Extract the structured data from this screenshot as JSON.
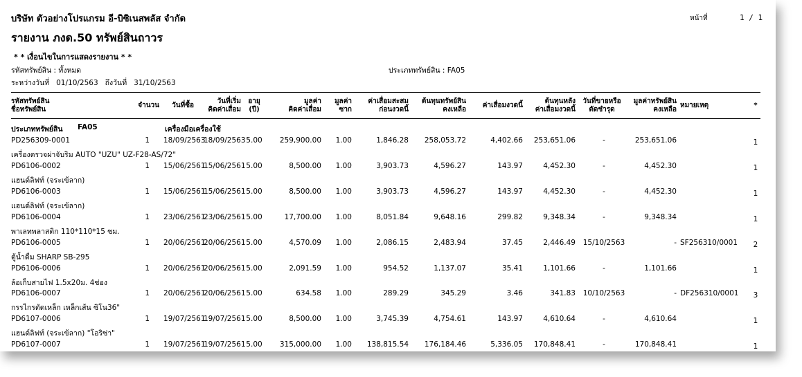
{
  "header": {
    "company": "บริษัท ตัวอย่างโปรแกรม อี-บิซิเนสพลัส จำกัด",
    "page_label": "หน้าที่",
    "page_number": "1 / 1",
    "report_title": "รายงาน ภงด.50  ทรัพย์สินถาวร"
  },
  "conditions": {
    "title": "* * เงื่อนไขในการแสดงรายงาน * *",
    "asset_code": "รหัสทรัพย์สิน : ทั้งหมด",
    "asset_type": "ประเภททรัพย์สิน : FA05",
    "between_label": "ระหว่างวันที่",
    "from_date": "01/10/2563",
    "to_label": "ถึงวันที่",
    "to_date": "31/10/2563"
  },
  "columns": {
    "code": [
      "รหัสทรัพย์สิน",
      "ชื่อทรัพย์สิน"
    ],
    "qty": "จำนวน",
    "buy_date": "วันที่ซื้อ",
    "start_date": [
      "วันที่เริ่ม",
      "คิดค่าเสื่อม"
    ],
    "life": [
      "อายุ",
      "(ปี)"
    ],
    "value": [
      "มูลค่า",
      "คิดค่าเสื่อม"
    ],
    "scrap": [
      "มูลค่า",
      "ซาก"
    ],
    "acc_dep": [
      "ค่าเสื่อมสะสม",
      "ก่อนงวดนี้"
    ],
    "remain_cost": [
      "ต้นทุนทรัพย์สิน",
      "คงเหลือ"
    ],
    "period_dep": "ค่าเสื่อมงวดนี้",
    "cost_after": [
      "ต้นทุนหลัง",
      "ค่าเสื่อมงวดนี้"
    ],
    "sell_date": [
      "วันที่ขายหรือ",
      "ตัดชำรุด"
    ],
    "asset_value": [
      "มูลค่าทรัพย์สิน",
      "คงเหลือ"
    ],
    "remark": "หมายเหตุ",
    "star": "*"
  },
  "group": {
    "label": "ประเภททรัพย์สิน",
    "code": "FA05",
    "name": "เครื่องมือเครื่องใช้"
  },
  "rows": [
    {
      "code": "PD256309-0001",
      "name": "เครื่องตรวจผ่าจับริม AUTO \"UZU\" UZ-F28-AS/72\"",
      "qty": "1",
      "buy": "18/09/2563",
      "start": "18/09/2563",
      "life": "5.00",
      "value": "259,900.00",
      "scrap": "1.00",
      "acc": "1,846.28",
      "remain": "258,053.72",
      "dep": "4,402.66",
      "after": "253,651.06",
      "sell": "-",
      "assetval": "253,651.06",
      "remark": "",
      "star": "1"
    },
    {
      "code": "PD6106-0002",
      "name": "แฮนด์ลิฟท์ (จระเข้ลาก)",
      "qty": "1",
      "buy": "15/06/2561",
      "start": "15/06/2561",
      "life": "5.00",
      "value": "8,500.00",
      "scrap": "1.00",
      "acc": "3,903.73",
      "remain": "4,596.27",
      "dep": "143.97",
      "after": "4,452.30",
      "sell": "-",
      "assetval": "4,452.30",
      "remark": "",
      "star": "1"
    },
    {
      "code": "PD6106-0003",
      "name": "แฮนด์ลิฟท์ (จระเข้ลาก)",
      "qty": "1",
      "buy": "15/06/2561",
      "start": "15/06/2561",
      "life": "5.00",
      "value": "8,500.00",
      "scrap": "1.00",
      "acc": "3,903.73",
      "remain": "4,596.27",
      "dep": "143.97",
      "after": "4,452.30",
      "sell": "-",
      "assetval": "4,452.30",
      "remark": "",
      "star": "1"
    },
    {
      "code": "PD6106-0004",
      "name": "พาเลทพลาสติก 110*110*15 ซม.",
      "qty": "1",
      "buy": "23/06/2561",
      "start": "23/06/2561",
      "life": "5.00",
      "value": "17,700.00",
      "scrap": "1.00",
      "acc": "8,051.84",
      "remain": "9,648.16",
      "dep": "299.82",
      "after": "9,348.34",
      "sell": "-",
      "assetval": "9,348.34",
      "remark": "",
      "star": "1"
    },
    {
      "code": "PD6106-0005",
      "name": "ตู้น้ำดื่ม SHARP SB-295",
      "qty": "1",
      "buy": "20/06/2561",
      "start": "20/06/2561",
      "life": "5.00",
      "value": "4,570.09",
      "scrap": "1.00",
      "acc": "2,086.15",
      "remain": "2,483.94",
      "dep": "37.45",
      "after": "2,446.49",
      "sell": "15/10/2563",
      "assetval": "-",
      "remark": "SF256310/0001",
      "star": "2"
    },
    {
      "code": "PD6106-0006",
      "name": "ล้อเก็บสายไฟ 1.5x20ม. 4ช่อง",
      "qty": "1",
      "buy": "20/06/2561",
      "start": "20/06/2561",
      "life": "5.00",
      "value": "2,091.59",
      "scrap": "1.00",
      "acc": "954.52",
      "remain": "1,137.07",
      "dep": "35.41",
      "after": "1,101.66",
      "sell": "-",
      "assetval": "1,101.66",
      "remark": "",
      "star": "1"
    },
    {
      "code": "PD6106-0007",
      "name": "กรรไกรตัดเหล็ก เหล็กเส้น ซิโน36\"",
      "qty": "1",
      "buy": "20/06/2561",
      "start": "20/06/2561",
      "life": "5.00",
      "value": "634.58",
      "scrap": "1.00",
      "acc": "289.29",
      "remain": "345.29",
      "dep": "3.46",
      "after": "341.83",
      "sell": "10/10/2563",
      "assetval": "-",
      "remark": "DF256310/0001",
      "star": "3"
    },
    {
      "code": "PD6107-0006",
      "name": "แฮนด์ลิฟท์ (จระเข้ลาก) \"โอริซ่า\"",
      "qty": "1",
      "buy": "19/07/2561",
      "start": "19/07/2561",
      "life": "5.00",
      "value": "8,500.00",
      "scrap": "1.00",
      "acc": "3,745.39",
      "remain": "4,754.61",
      "dep": "143.97",
      "after": "4,610.64",
      "sell": "-",
      "assetval": "4,610.64",
      "remark": "",
      "star": "1"
    },
    {
      "code": "PD6107-0007",
      "name": "",
      "qty": "1",
      "buy": "19/07/2561",
      "start": "19/07/2561",
      "life": "5.00",
      "value": "315,000.00",
      "scrap": "1.00",
      "acc": "138,815.54",
      "remain": "176,184.46",
      "dep": "5,336.05",
      "after": "170,848.41",
      "sell": "-",
      "assetval": "170,848.41",
      "remark": "",
      "star": "1"
    }
  ]
}
